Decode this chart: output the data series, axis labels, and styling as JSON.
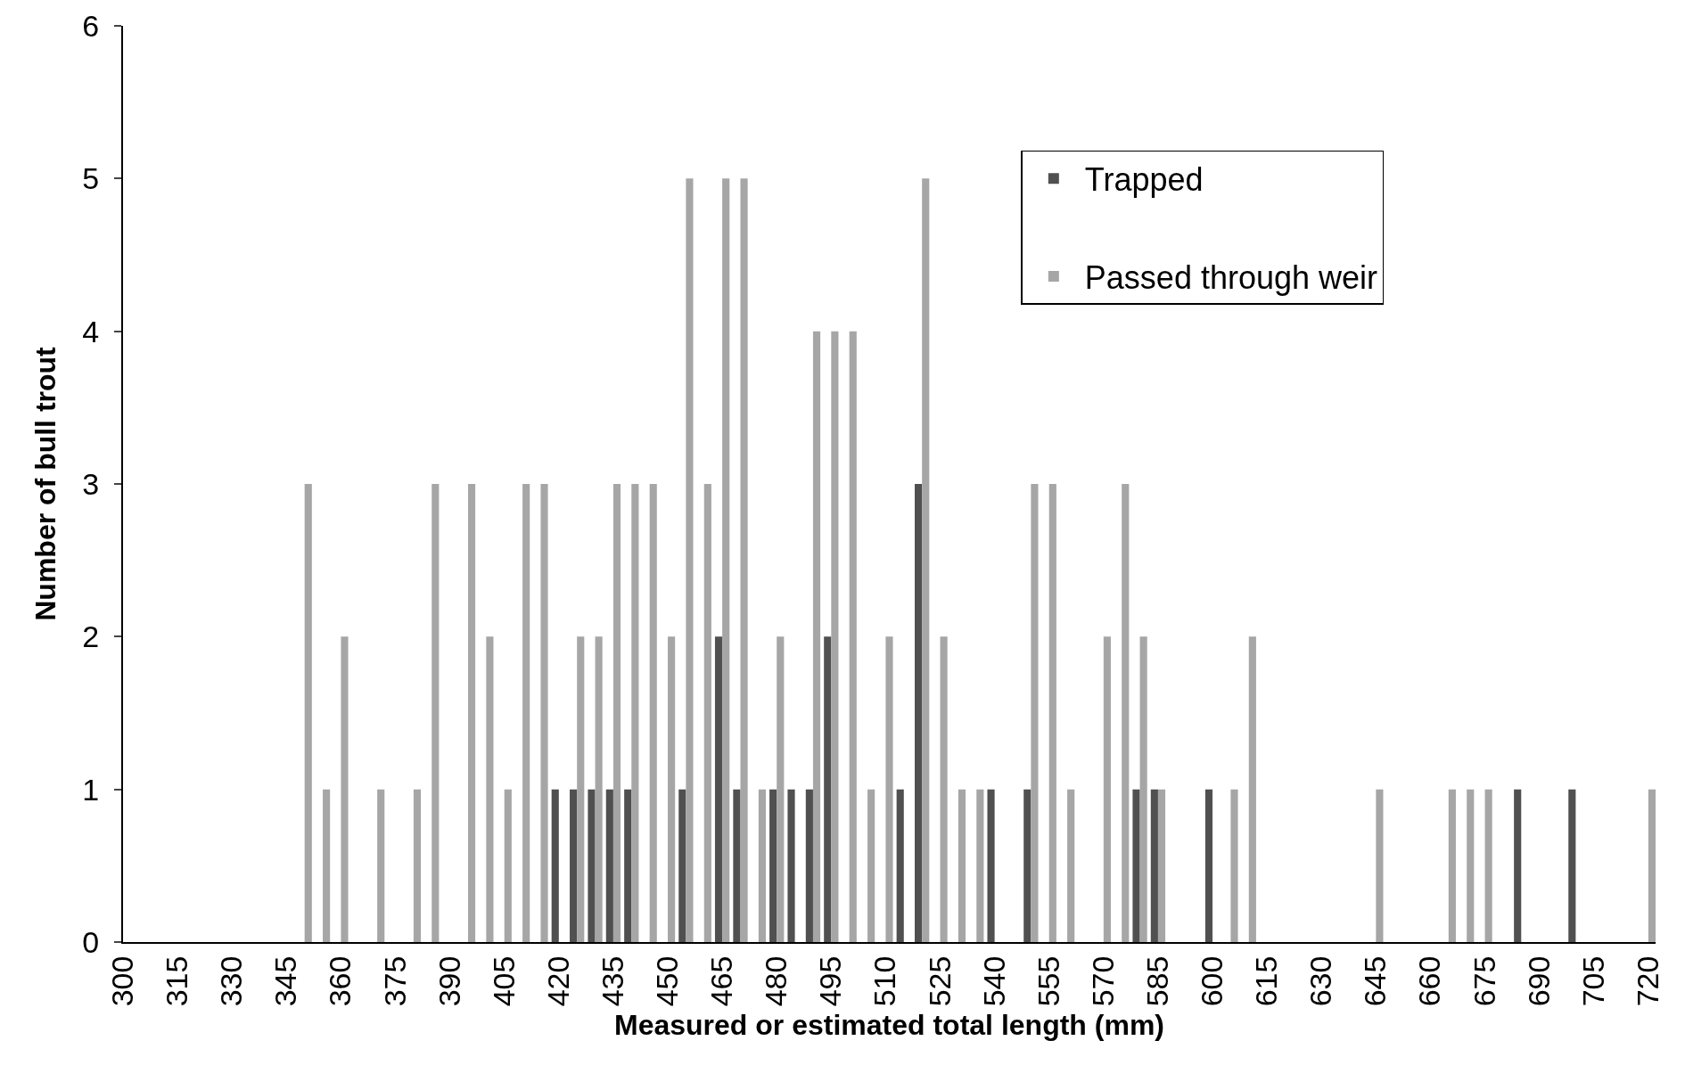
{
  "chart_data": {
    "type": "bar",
    "xlabel": "Measured or estimated total length (mm)",
    "ylabel": "Number of bull trout",
    "x": [
      300,
      305,
      310,
      315,
      320,
      325,
      330,
      335,
      340,
      345,
      350,
      355,
      360,
      365,
      370,
      375,
      380,
      385,
      390,
      395,
      400,
      405,
      410,
      415,
      420,
      425,
      430,
      435,
      440,
      445,
      450,
      455,
      460,
      465,
      470,
      475,
      480,
      485,
      490,
      495,
      500,
      505,
      510,
      515,
      520,
      525,
      530,
      535,
      540,
      545,
      550,
      555,
      560,
      565,
      570,
      575,
      580,
      585,
      590,
      595,
      600,
      605,
      610,
      615,
      620,
      625,
      630,
      635,
      640,
      645,
      650,
      655,
      660,
      665,
      670,
      675,
      680,
      685,
      690,
      695,
      700,
      705,
      710,
      715,
      720
    ],
    "series": [
      {
        "name": "Trapped",
        "color": "#505050",
        "values": [
          0,
          0,
          0,
          0,
          0,
          0,
          0,
          0,
          0,
          0,
          0,
          0,
          0,
          0,
          0,
          0,
          0,
          0,
          0,
          0,
          0,
          0,
          0,
          0,
          1,
          1,
          1,
          1,
          1,
          0,
          0,
          1,
          0,
          2,
          1,
          0,
          1,
          1,
          1,
          2,
          0,
          0,
          0,
          1,
          3,
          0,
          0,
          0,
          1,
          0,
          1,
          0,
          0,
          0,
          0,
          0,
          1,
          1,
          0,
          0,
          1,
          0,
          0,
          0,
          0,
          0,
          0,
          0,
          0,
          0,
          0,
          0,
          0,
          0,
          0,
          0,
          0,
          1,
          0,
          0,
          1,
          0,
          0,
          0,
          0
        ]
      },
      {
        "name": "Passed through weir",
        "color": "#a6a6a6",
        "values": [
          0,
          0,
          0,
          0,
          0,
          0,
          0,
          0,
          0,
          0,
          3,
          1,
          2,
          0,
          1,
          0,
          1,
          3,
          0,
          3,
          2,
          1,
          3,
          3,
          0,
          2,
          2,
          3,
          3,
          3,
          2,
          5,
          3,
          5,
          5,
          1,
          2,
          0,
          4,
          4,
          4,
          1,
          2,
          0,
          5,
          2,
          1,
          1,
          0,
          0,
          3,
          3,
          1,
          0,
          2,
          3,
          2,
          1,
          0,
          0,
          0,
          1,
          2,
          0,
          0,
          0,
          0,
          0,
          0,
          1,
          0,
          0,
          0,
          1,
          1,
          1,
          0,
          0,
          0,
          0,
          0,
          0,
          0,
          0,
          1
        ]
      }
    ],
    "xlim": [
      300,
      722
    ],
    "xticks": [
      300,
      315,
      330,
      345,
      360,
      375,
      390,
      405,
      420,
      435,
      450,
      465,
      480,
      495,
      510,
      525,
      540,
      555,
      570,
      585,
      600,
      615,
      630,
      645,
      660,
      675,
      690,
      705,
      720
    ],
    "ylim": [
      0,
      6
    ],
    "yticks": [
      0,
      1,
      2,
      3,
      4,
      5,
      6
    ],
    "grid": false,
    "legend": "top right"
  }
}
